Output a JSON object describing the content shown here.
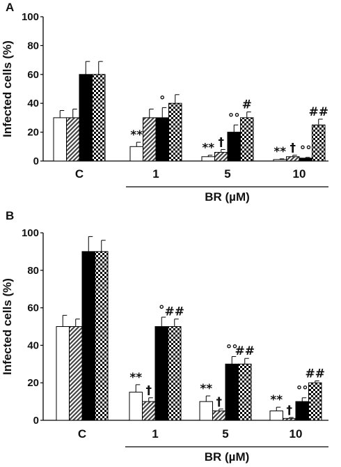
{
  "chart_data": [
    {
      "panel_label": "A",
      "type": "bar",
      "categories": [
        "C",
        "1",
        "5",
        "10"
      ],
      "group_label": "BR (µM)",
      "ylabel": "Infected  cells (%)",
      "ylim": [
        0,
        100
      ],
      "yticks": [
        "0",
        "20",
        "40",
        "60",
        "80",
        "100"
      ],
      "series": [
        {
          "fill": "white",
          "values": [
            30,
            10,
            3,
            1
          ],
          "errors": [
            5,
            3,
            1,
            0.5
          ]
        },
        {
          "fill": "diagonal",
          "values": [
            30,
            30,
            6,
            3
          ],
          "errors": [
            6,
            6,
            2,
            1
          ]
        },
        {
          "fill": "black",
          "values": [
            60,
            30,
            20,
            2
          ],
          "errors": [
            9,
            7,
            5,
            0.5
          ]
        },
        {
          "fill": "checkerboard",
          "values": [
            60,
            40,
            30,
            25
          ],
          "errors": [
            9,
            6,
            4,
            4
          ]
        }
      ],
      "annotations": [
        {
          "category": 1,
          "series": 0,
          "text": "**"
        },
        {
          "category": 1,
          "series": 2,
          "text": "°"
        },
        {
          "category": 2,
          "series": 0,
          "text": "**"
        },
        {
          "category": 2,
          "series": 1,
          "text": "†"
        },
        {
          "category": 2,
          "series": 2,
          "text": "°°"
        },
        {
          "category": 2,
          "series": 3,
          "text": "#"
        },
        {
          "category": 3,
          "series": 0,
          "text": "**"
        },
        {
          "category": 3,
          "series": 1,
          "text": "†"
        },
        {
          "category": 3,
          "series": 2,
          "text": "°°"
        },
        {
          "category": 3,
          "series": 3,
          "text": "##"
        }
      ]
    },
    {
      "panel_label": "B",
      "type": "bar",
      "categories": [
        "C",
        "1",
        "5",
        "10"
      ],
      "group_label": "BR (µM)",
      "ylabel": "Infected  cells (%)",
      "ylim": [
        0,
        100
      ],
      "yticks": [
        "0",
        "20",
        "40",
        "60",
        "80",
        "100"
      ],
      "series": [
        {
          "fill": "white",
          "values": [
            50,
            15,
            10,
            5
          ],
          "errors": [
            6,
            4,
            3,
            2
          ]
        },
        {
          "fill": "diagonal",
          "values": [
            50,
            10,
            5,
            1
          ],
          "errors": [
            4,
            2,
            1,
            0.5
          ]
        },
        {
          "fill": "black",
          "values": [
            90,
            50,
            30,
            10
          ],
          "errors": [
            8,
            5,
            4,
            2
          ]
        },
        {
          "fill": "checkerboard",
          "values": [
            90,
            50,
            30,
            20
          ],
          "errors": [
            6,
            4,
            3,
            1
          ]
        }
      ],
      "annotations": [
        {
          "category": 1,
          "series": 0,
          "text": "**"
        },
        {
          "category": 1,
          "series": 1,
          "text": "†"
        },
        {
          "category": 1,
          "series": 2,
          "text": "°"
        },
        {
          "category": 1,
          "series": 3,
          "text": "##"
        },
        {
          "category": 2,
          "series": 0,
          "text": "**"
        },
        {
          "category": 2,
          "series": 1,
          "text": "†"
        },
        {
          "category": 2,
          "series": 2,
          "text": "°°"
        },
        {
          "category": 2,
          "series": 3,
          "text": "##"
        },
        {
          "category": 3,
          "series": 0,
          "text": "**"
        },
        {
          "category": 3,
          "series": 1,
          "text": "†"
        },
        {
          "category": 3,
          "series": 2,
          "text": "°°"
        },
        {
          "category": 3,
          "series": 3,
          "text": "##"
        }
      ]
    }
  ]
}
